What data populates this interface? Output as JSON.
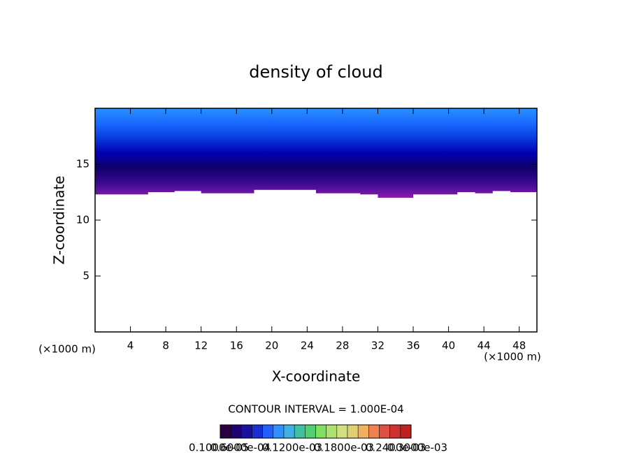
{
  "chart_data": {
    "type": "contour",
    "title": "density of cloud",
    "xlabel": "X-coordinate",
    "ylabel": "Z-coordinate",
    "x_unit_left": "(×1000 m)",
    "x_unit_right": "(×1000 m)",
    "xlim": [
      0,
      50
    ],
    "ylim": [
      0,
      20
    ],
    "xticks": [
      4,
      8,
      12,
      16,
      20,
      24,
      28,
      32,
      36,
      40,
      44,
      48
    ],
    "yticks": [
      5,
      10,
      15
    ],
    "x": [
      0,
      6,
      6,
      9,
      9,
      12,
      12,
      18,
      18,
      25,
      25,
      30,
      30,
      32,
      32,
      36,
      36,
      41,
      41,
      43,
      43,
      45,
      45,
      47,
      47,
      50
    ],
    "cloud_base": [
      12.3,
      12.3,
      12.5,
      12.5,
      12.6,
      12.6,
      12.4,
      12.4,
      12.7,
      12.7,
      12.4,
      12.4,
      12.3,
      12.3,
      12.0,
      12.0,
      12.3,
      12.3,
      12.5,
      12.5,
      12.4,
      12.4,
      12.6,
      12.6,
      12.5,
      12.5
    ],
    "colormap": [
      "#8a1ab0",
      "#3a0a90",
      "#10006a",
      "#0000b0",
      "#0a3ae0",
      "#1a6aff",
      "#2a90ff"
    ],
    "contour_interval": "CONTOUR INTERVAL = 1.000E-04",
    "colorbar": {
      "colors": [
        "#2a0040",
        "#200070",
        "#1a10a0",
        "#1830d0",
        "#2060ff",
        "#3090ff",
        "#40b0e0",
        "#40c0a0",
        "#50d070",
        "#80e060",
        "#b0e070",
        "#d0e080",
        "#e0d070",
        "#f0b060",
        "#f08050",
        "#e05040",
        "#d03030",
        "#c02020"
      ],
      "labels": [
        "0.1000e-05",
        "0.6000e-04",
        "0.1200e-03",
        "0.1800e-03",
        "0.2400e-03",
        "0.3000e-03"
      ]
    }
  }
}
